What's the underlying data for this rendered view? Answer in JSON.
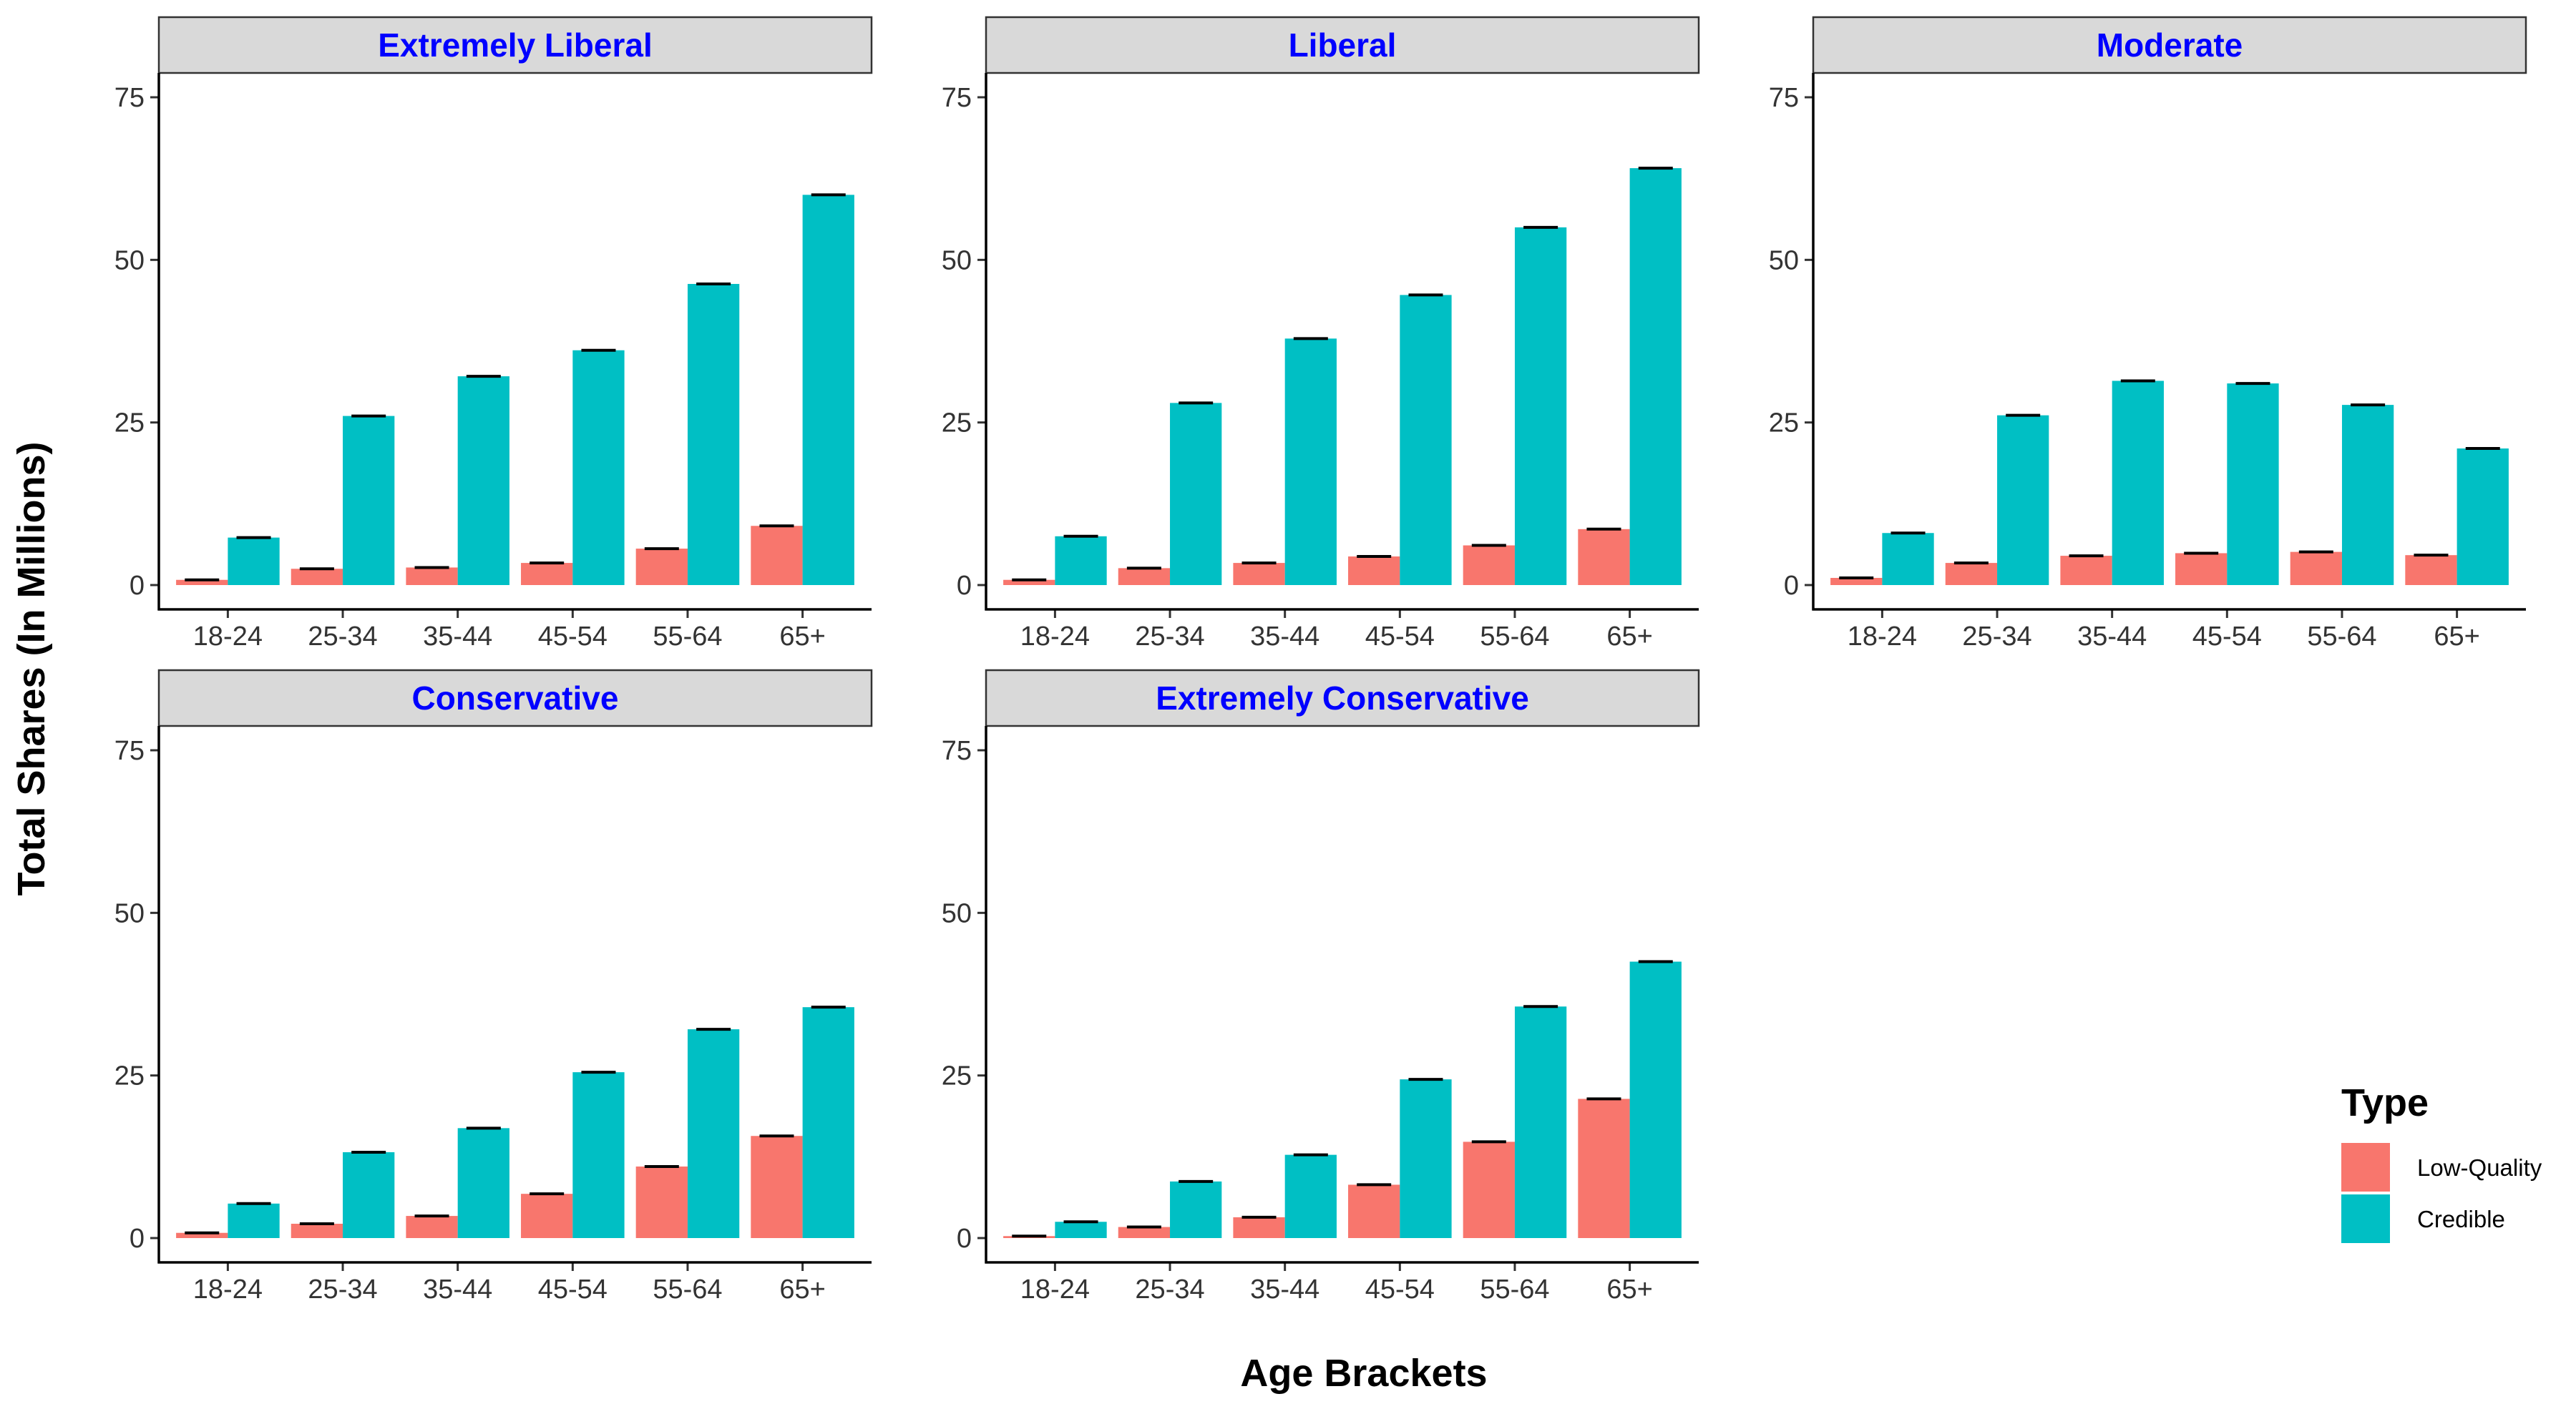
{
  "chart_data": {
    "type": "bar",
    "ylabel": "Total Shares (In Millions)",
    "xlabel": "Age Brackets",
    "ylim": [
      0,
      75
    ],
    "yticks": [
      0,
      25,
      50,
      75
    ],
    "categories": [
      "18-24",
      "25-34",
      "35-44",
      "45-54",
      "55-64",
      "65+"
    ],
    "legend": {
      "title": "Type",
      "position": "right",
      "entries": [
        {
          "name": "Low-Quality",
          "color": "#F8766D"
        },
        {
          "name": "Credible",
          "color": "#00BFC4"
        }
      ]
    },
    "error_bars": true,
    "panels": [
      {
        "title": "Extremely Liberal",
        "series": [
          {
            "name": "Low-Quality",
            "values": [
              0.8,
              2.5,
              2.7,
              3.4,
              5.6,
              9.1
            ]
          },
          {
            "name": "Credible",
            "values": [
              7.3,
              26.0,
              32.1,
              36.1,
              46.3,
              60.0
            ]
          }
        ]
      },
      {
        "title": "Liberal",
        "series": [
          {
            "name": "Low-Quality",
            "values": [
              0.8,
              2.6,
              3.4,
              4.4,
              6.1,
              8.6
            ]
          },
          {
            "name": "Credible",
            "values": [
              7.5,
              28.0,
              37.9,
              44.6,
              55.0,
              64.1
            ]
          }
        ]
      },
      {
        "title": "Moderate",
        "series": [
          {
            "name": "Low-Quality",
            "values": [
              1.1,
              3.4,
              4.5,
              4.9,
              5.1,
              4.6
            ]
          },
          {
            "name": "Credible",
            "values": [
              8.0,
              26.1,
              31.4,
              31.0,
              27.7,
              21.0
            ]
          }
        ]
      },
      {
        "title": "Conservative",
        "series": [
          {
            "name": "Low-Quality",
            "values": [
              0.8,
              2.2,
              3.4,
              6.8,
              11.0,
              15.7
            ]
          },
          {
            "name": "Credible",
            "values": [
              5.3,
              13.2,
              16.9,
              25.5,
              32.1,
              35.5
            ]
          }
        ]
      },
      {
        "title": "Extremely Conservative",
        "series": [
          {
            "name": "Low-Quality",
            "values": [
              0.3,
              1.7,
              3.2,
              8.2,
              14.8,
              21.4
            ]
          },
          {
            "name": "Credible",
            "values": [
              2.5,
              8.7,
              12.8,
              24.4,
              35.6,
              42.5
            ]
          }
        ]
      }
    ]
  }
}
